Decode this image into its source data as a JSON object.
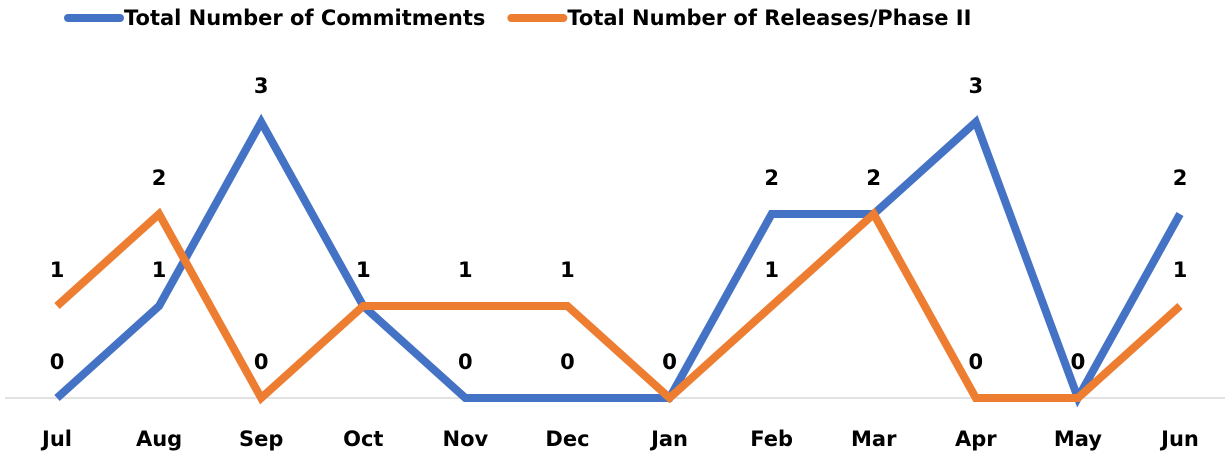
{
  "chart_data": {
    "type": "line",
    "categories": [
      "Jul",
      "Aug",
      "Sep",
      "Oct",
      "Nov",
      "Dec",
      "Jan",
      "Feb",
      "Mar",
      "Apr",
      "May",
      "Jun"
    ],
    "series": [
      {
        "name": "Total Number of Commitments",
        "color": "#4472c4",
        "values": [
          0,
          1,
          3,
          1,
          0,
          0,
          0,
          2,
          2,
          3,
          0,
          2
        ]
      },
      {
        "name": "Total Number of Releases/Phase II",
        "color": "#ed7d31",
        "values": [
          1,
          2,
          0,
          1,
          1,
          1,
          0,
          1,
          2,
          0,
          0,
          1
        ]
      }
    ],
    "ylim": [
      0,
      3
    ],
    "legend": "top"
  }
}
